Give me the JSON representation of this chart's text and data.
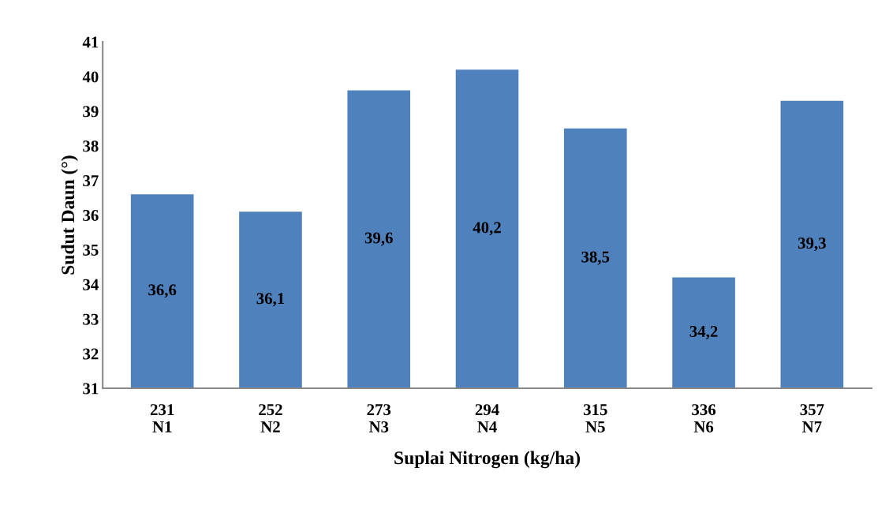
{
  "chart_data": {
    "type": "bar",
    "xlabel": "Suplai Nitrogen (kg/ha)",
    "ylabel": "Sudut Daun (°)",
    "categories": [
      "231\nN1",
      "252\nN2",
      "273\nN3",
      "294\nN4",
      "315\nN5",
      "336\nN6",
      "357\nN7"
    ],
    "values": [
      36.6,
      36.1,
      39.6,
      40.2,
      38.5,
      34.2,
      39.3
    ],
    "value_labels": [
      "36,6",
      "36,1",
      "39,6",
      "40,2",
      "38,5",
      "34,2",
      "39,3"
    ],
    "color": "#4f81bd",
    "ylim": [
      31,
      41
    ],
    "yticks": [
      31,
      32,
      33,
      34,
      35,
      36,
      37,
      38,
      39,
      40,
      41
    ],
    "grid": false
  }
}
